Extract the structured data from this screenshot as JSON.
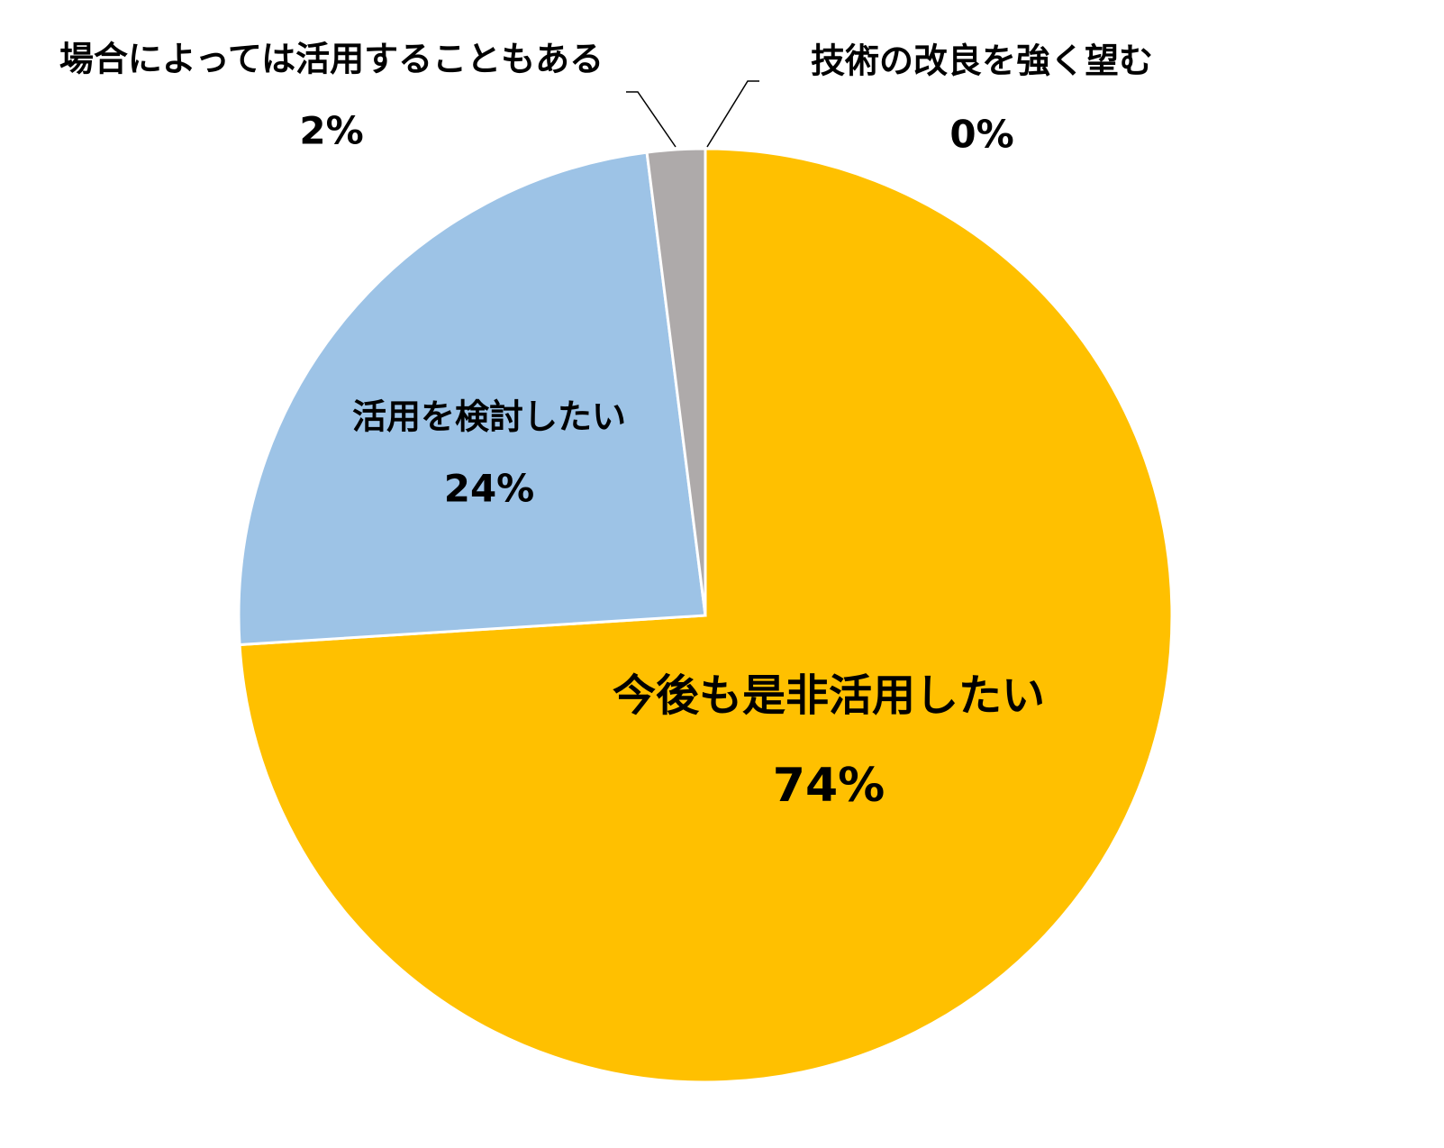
{
  "chart_data": {
    "type": "pie",
    "categories": [
      "今後も是非活用したい",
      "活用を検討したい",
      "場合によっては活用することもある",
      "技術の改良を強く望む"
    ],
    "values": [
      74,
      24,
      2,
      0
    ],
    "value_labels": [
      "74%",
      "24%",
      "2%",
      "0%"
    ],
    "colors": [
      "#FFC000",
      "#9DC3E6",
      "#AEAAAA",
      "#5B9BD5"
    ]
  }
}
